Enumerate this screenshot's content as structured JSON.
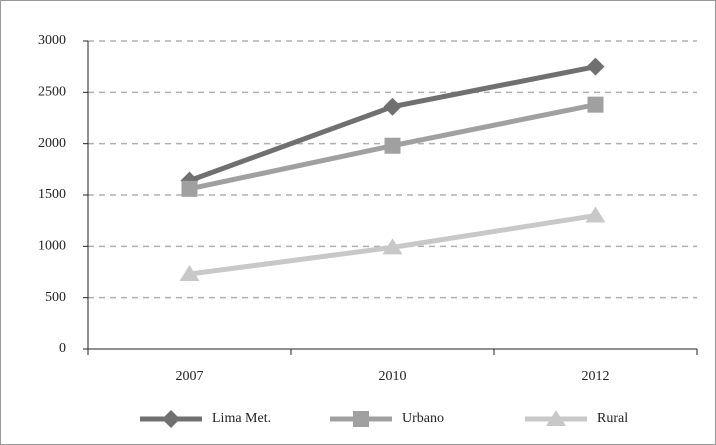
{
  "chart_data": {
    "type": "line",
    "categories": [
      "2007",
      "2010",
      "2012"
    ],
    "series": [
      {
        "name": "Lima Met.",
        "color": "#707070",
        "marker": "diamond",
        "values": [
          1640,
          2360,
          2750
        ]
      },
      {
        "name": "Urbano",
        "color": "#a0a0a0",
        "marker": "square",
        "values": [
          1560,
          1980,
          2380
        ]
      },
      {
        "name": "Rural",
        "color": "#c8c8c8",
        "marker": "triangle",
        "values": [
          730,
          990,
          1300
        ]
      }
    ],
    "ylim": [
      0,
      3000
    ],
    "yticks": [
      0,
      500,
      1000,
      1500,
      2000,
      2500,
      3000
    ],
    "grid": true,
    "legend": "bottom"
  }
}
